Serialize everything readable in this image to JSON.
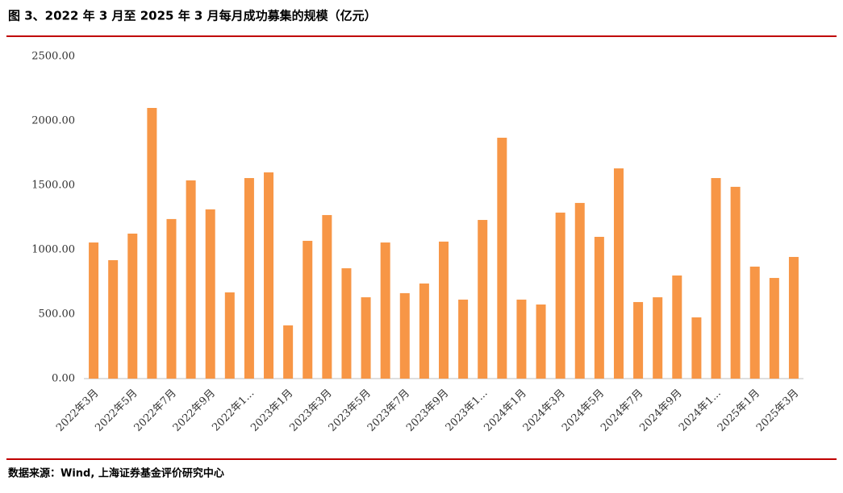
{
  "chart_data": {
    "type": "bar",
    "title": "图 3、2022 年 3 月至 2025 年 3 月每月成功募集的规模（亿元）",
    "source": "数据来源：Wind, 上海证券基金评价研究中心",
    "categories": [
      "2022年3月",
      null,
      "2022年5月",
      null,
      "2022年7月",
      null,
      "2022年9月",
      null,
      "2022年1...",
      null,
      "2023年1月",
      null,
      "2023年3月",
      null,
      "2023年5月",
      null,
      "2023年7月",
      null,
      "2023年9月",
      null,
      "2023年1...",
      null,
      "2024年1月",
      null,
      "2024年3月",
      null,
      "2024年5月",
      null,
      "2024年7月",
      null,
      "2024年9月",
      null,
      "2024年1...",
      null,
      "2025年1月",
      null,
      "2025年3月"
    ],
    "values": [
      1056,
      919,
      1125,
      2100,
      1238,
      1538,
      1313,
      669,
      1556,
      1600,
      413,
      1069,
      1269,
      856,
      631,
      1056,
      663,
      738,
      1063,
      613,
      1231,
      1869,
      613,
      575,
      1288,
      1363,
      1100,
      1631,
      594,
      631,
      800,
      475,
      1556,
      1488,
      869,
      781,
      944
    ],
    "color": "#f79646",
    "ylim": [
      0,
      2500
    ],
    "yticks": [
      {
        "value": 0,
        "label": "0.00"
      },
      {
        "value": 500,
        "label": "500.00"
      },
      {
        "value": 1000,
        "label": "1000.00"
      },
      {
        "value": 1500,
        "label": "1500.00"
      },
      {
        "value": 2000,
        "label": "2000.00"
      },
      {
        "value": 2500,
        "label": "2500.00"
      }
    ],
    "grid": false
  }
}
